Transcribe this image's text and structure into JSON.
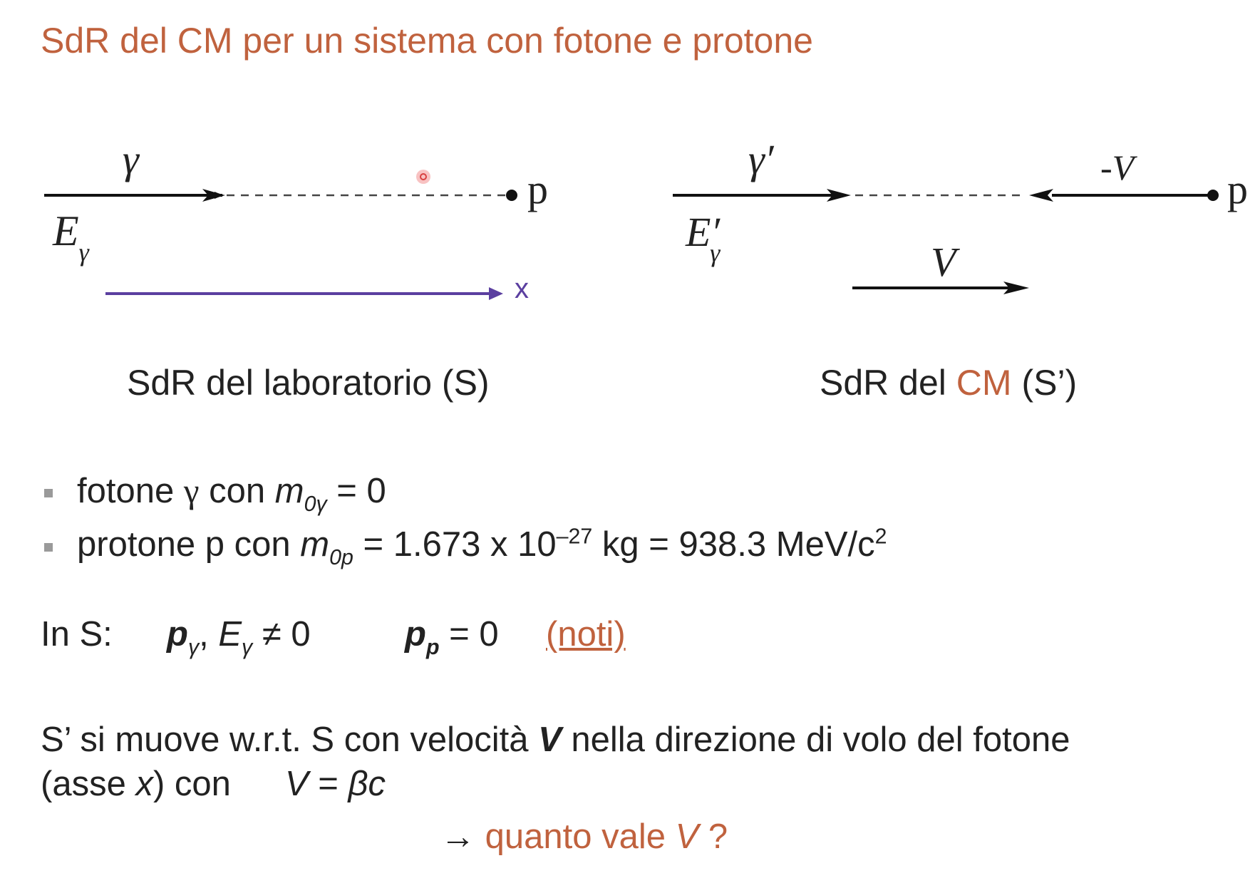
{
  "slide": {
    "title": "SdR del CM per un sistema con fotone e protone"
  },
  "diagram_lab": {
    "photon_label": "γ",
    "energy_label": "E",
    "energy_sub": "γ",
    "proton_label": "p",
    "axis_label": "x",
    "caption": "SdR del laboratorio (S)"
  },
  "diagram_cm": {
    "photon_label": "γ′",
    "energy_label": "E′",
    "energy_sub": "γ",
    "proton_velocity_label": "-V",
    "proton_label": "p",
    "frame_velocity_label": "V",
    "caption_prefix": "SdR  del ",
    "caption_accent": "CM",
    "caption_suffix": " (S’)"
  },
  "bullets": [
    {
      "pre": "fotone ",
      "symbol": "γ",
      "mid": " con ",
      "mass": "m",
      "mass_sub": "0γ",
      "value": " = 0"
    },
    {
      "pre": "protone p con ",
      "mass": "m",
      "mass_sub": "0p",
      "value": " = 1.673 x 10",
      "exp": "–27",
      "unit": " kg = 938.3 MeV/c",
      "unit_exp": "2"
    }
  ],
  "in_s": {
    "label": "In S:",
    "p_sym": "p",
    "p_sub": "γ",
    "comma": ", ",
    "e_sym": "E",
    "e_sub": "γ",
    "neq": " ≠ 0",
    "pp_sym": "p",
    "pp_sub": "p",
    "pp_value": " = 0",
    "noti": "(noti)"
  },
  "motion": {
    "line1_pre": "S’ si muove w.r.t. S con velocità ",
    "line1_v": "V",
    "line1_post": " nella direzione di volo del fotone",
    "line2_pre": "(asse ",
    "line2_x": "x",
    "line2_post": ") con",
    "eq_v": "V",
    "eq_mid": " = ",
    "eq_beta": "β",
    "eq_c": "c"
  },
  "question": {
    "arrow": "→",
    "text": "quanto vale ",
    "v": "V",
    "mark": " ?"
  },
  "colors": {
    "accent": "#c0623e",
    "axis": "#5b3fa0",
    "text": "#222222",
    "pointer": "#e05050"
  }
}
